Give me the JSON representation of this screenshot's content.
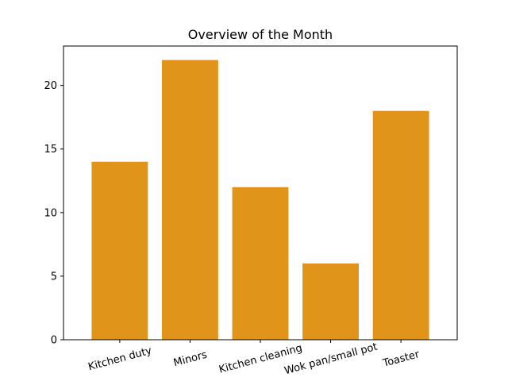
{
  "chart_data": {
    "type": "bar",
    "title": "Overview of the Month",
    "xlabel": "",
    "ylabel": "",
    "categories": [
      "Kitchen duty",
      "Minors",
      "Kitchen cleaning",
      "Wok pan/small pot",
      "Toaster"
    ],
    "values": [
      14,
      22,
      12,
      6,
      18
    ],
    "ylim": [
      0,
      23.1
    ],
    "yticks": [
      0,
      5,
      10,
      15,
      20
    ],
    "bar_color": "#e1941a",
    "grid": false,
    "legend": "none",
    "xtick_rotation": "slanted"
  }
}
